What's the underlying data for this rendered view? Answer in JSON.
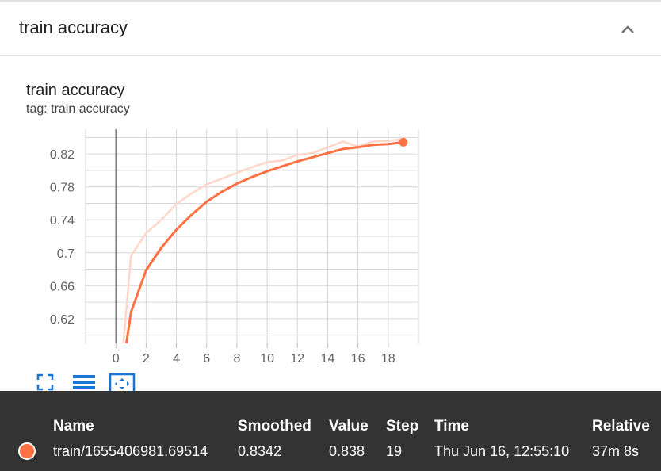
{
  "card": {
    "header_title": "train accuracy",
    "collapse_icon": "chevron-up-icon"
  },
  "chart": {
    "title": "train accuracy",
    "tag": "tag: train accuracy"
  },
  "chart_data": {
    "type": "line",
    "title": "train accuracy",
    "xlabel": "",
    "ylabel": "",
    "xlim": [
      -2,
      20
    ],
    "ylim": [
      0.59,
      0.85
    ],
    "xticks": [
      0,
      2,
      4,
      6,
      8,
      10,
      12,
      14,
      16,
      18
    ],
    "xtick_labels": [
      "0",
      "2",
      "4",
      "6",
      "8",
      "10",
      "12",
      "14",
      "16",
      "18"
    ],
    "yticks": [
      0.62,
      0.66,
      0.7,
      0.74,
      0.78,
      0.82
    ],
    "ytick_labels": [
      "0.62",
      "0.66",
      "0.7",
      "0.74",
      "0.78",
      "0.82"
    ],
    "grid": true,
    "series": [
      {
        "style": "raw",
        "color": "#ffd6c8",
        "x": [
          0.5,
          1,
          2,
          3,
          4,
          5,
          6,
          7,
          8,
          9,
          10,
          11,
          12,
          13,
          14,
          15,
          16,
          17,
          18,
          19
        ],
        "y": [
          0.59,
          0.696,
          0.724,
          0.74,
          0.759,
          0.772,
          0.783,
          0.79,
          0.797,
          0.804,
          0.81,
          0.812,
          0.819,
          0.821,
          0.828,
          0.835,
          0.829,
          0.835,
          0.836,
          0.838
        ]
      },
      {
        "style": "smoothed",
        "color": "#ff7043",
        "x": [
          0.7,
          1,
          2,
          3,
          4,
          5,
          6,
          7,
          8,
          9,
          10,
          11,
          12,
          13,
          14,
          15,
          16,
          17,
          18,
          19
        ],
        "y": [
          0.59,
          0.628,
          0.679,
          0.706,
          0.728,
          0.746,
          0.762,
          0.774,
          0.784,
          0.792,
          0.799,
          0.805,
          0.811,
          0.816,
          0.821,
          0.826,
          0.828,
          0.831,
          0.832,
          0.8342
        ]
      }
    ]
  },
  "toolbar": {
    "fullscreen_icon": "fullscreen-icon",
    "legend_icon": "list-icon",
    "fit_icon": "fit-domain-icon"
  },
  "tooltip": {
    "headers": {
      "name": "Name",
      "smoothed": "Smoothed",
      "value": "Value",
      "step": "Step",
      "time": "Time",
      "relative": "Relative"
    },
    "row": {
      "name": "train/1655406981.69514",
      "smoothed": "0.8342",
      "value": "0.838",
      "step": "19",
      "time": "Thu Jun 16, 12:55:10",
      "relative": "37m 8s",
      "color": "#ff7043"
    }
  }
}
